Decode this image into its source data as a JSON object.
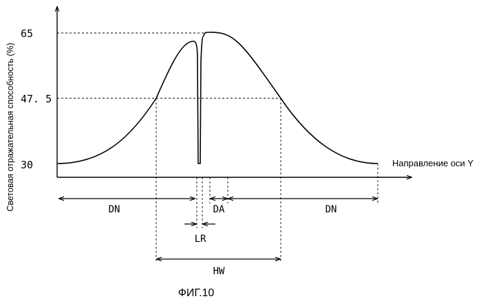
{
  "figure": {
    "caption": "ФИГ.10",
    "y_axis_label": "Световая отражательная способность (%)",
    "x_axis_label": "Направление оси Y",
    "y_ticks": [
      "65",
      "47. 5",
      "30"
    ],
    "y_tick_values": [
      65,
      47.5,
      30
    ],
    "dimensions": {
      "dn_left": "DN",
      "da": "DA",
      "dn_right": "DN",
      "lr": "LR",
      "hw": "HW"
    },
    "stroke_color": "#000000",
    "guide_style": "dashed"
  }
}
